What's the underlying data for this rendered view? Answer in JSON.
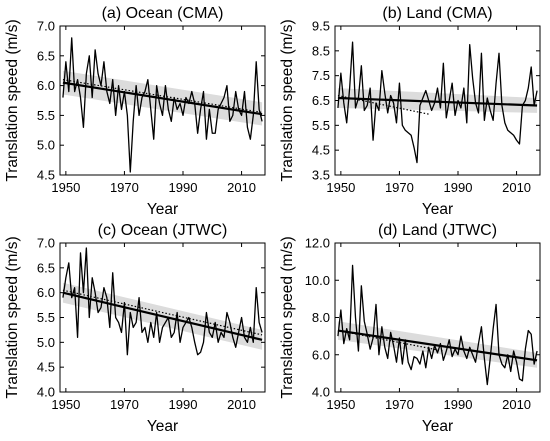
{
  "chart_data": [
    {
      "type": "line",
      "title": "(a) Ocean (CMA)",
      "xlabel": "Year",
      "ylabel": "Translation speed (m/s)",
      "xlim": [
        1948,
        2018
      ],
      "ylim": [
        4.5,
        7.0
      ],
      "xticks": [
        1950,
        1970,
        1990,
        2010
      ],
      "yticks": [
        4.5,
        5.0,
        5.5,
        6.0,
        6.5,
        7.0
      ],
      "ytick_labels": [
        "4.5",
        "5.0",
        "5.5",
        "6.0",
        "6.5",
        "7.0"
      ],
      "grid": false,
      "series": [
        {
          "style": "solid-thin",
          "x": [
            1949,
            1950,
            1951,
            1952,
            1953,
            1954,
            1955,
            1956,
            1957,
            1958,
            1959,
            1960,
            1961,
            1962,
            1963,
            1964,
            1965,
            1966,
            1967,
            1968,
            1969,
            1970,
            1971,
            1972,
            1973,
            1974,
            1975,
            1976,
            1977,
            1978,
            1979,
            1980,
            1981,
            1982,
            1983,
            1984,
            1985,
            1986,
            1987,
            1988,
            1989,
            1990,
            1991,
            1992,
            1993,
            1994,
            1995,
            1996,
            1997,
            1998,
            1999,
            2000,
            2001,
            2002,
            2003,
            2004,
            2005,
            2006,
            2007,
            2008,
            2009,
            2010,
            2011,
            2012,
            2013,
            2014,
            2015,
            2016,
            2017
          ],
          "y": [
            5.8,
            6.4,
            5.9,
            6.8,
            5.9,
            6.1,
            5.8,
            5.3,
            6.2,
            6.5,
            5.8,
            6.6,
            6.2,
            6.0,
            6.4,
            5.9,
            5.7,
            6.1,
            5.5,
            6.0,
            5.6,
            5.9,
            5.5,
            4.55,
            5.4,
            6.0,
            5.5,
            5.8,
            5.9,
            6.1,
            5.6,
            5.1,
            6.0,
            5.7,
            5.5,
            6.0,
            5.6,
            5.4,
            5.8,
            5.6,
            5.7,
            5.5,
            5.8,
            5.7,
            5.9,
            5.7,
            5.2,
            5.6,
            5.9,
            5.1,
            5.6,
            5.2,
            5.2,
            5.6,
            5.7,
            5.8,
            6.0,
            5.4,
            5.5,
            5.9,
            5.6,
            5.5,
            5.9,
            5.3,
            5.1,
            5.5,
            6.4,
            5.6,
            5.4
          ]
        },
        {
          "style": "dotted",
          "x": [
            1949,
            2017
          ],
          "y": [
            6.1,
            5.55
          ]
        },
        {
          "style": "solid-thick",
          "x": [
            1949,
            2017
          ],
          "y": [
            6.05,
            5.52
          ]
        }
      ],
      "confidence_band": {
        "x": [
          1949,
          2017
        ],
        "lower": [
          5.85,
          5.33
        ],
        "upper": [
          6.25,
          5.72
        ]
      }
    },
    {
      "type": "line",
      "title": "(b) Land (CMA)",
      "xlabel": "Year",
      "ylabel": "Translation speed (m/s)",
      "xlim": [
        1948,
        2018
      ],
      "ylim": [
        3.5,
        9.5
      ],
      "xticks": [
        1950,
        1970,
        1990,
        2010
      ],
      "yticks": [
        3.5,
        4.5,
        5.5,
        6.5,
        7.5,
        8.5,
        9.5
      ],
      "ytick_labels": [
        "3.5",
        "4.5",
        "5.5",
        "6.5",
        "7.5",
        "8.5",
        "9.5"
      ],
      "grid": false,
      "series": [
        {
          "style": "solid-thin",
          "x": [
            1949,
            1950,
            1951,
            1952,
            1953,
            1954,
            1955,
            1956,
            1957,
            1958,
            1959,
            1960,
            1961,
            1962,
            1963,
            1964,
            1965,
            1966,
            1967,
            1968,
            1969,
            1970,
            1971,
            1972,
            1973,
            1974,
            1975,
            1976,
            1977,
            1978,
            1979,
            1980,
            1981,
            1982,
            1983,
            1984,
            1985,
            1986,
            1987,
            1988,
            1989,
            1990,
            1991,
            1992,
            1993,
            1994,
            1995,
            1996,
            1997,
            1998,
            1999,
            2000,
            2001,
            2002,
            2003,
            2004,
            2005,
            2006,
            2007,
            2008,
            2009,
            2010,
            2011,
            2012,
            2013,
            2014,
            2015,
            2016,
            2017
          ],
          "y": [
            6.2,
            7.6,
            6.4,
            5.6,
            7.0,
            8.85,
            6.2,
            6.6,
            7.9,
            6.1,
            6.3,
            7.0,
            4.9,
            6.4,
            6.1,
            7.7,
            6.8,
            6.0,
            6.7,
            6.4,
            5.6,
            7.2,
            5.5,
            5.3,
            5.2,
            5.1,
            4.6,
            4.0,
            6.3,
            6.6,
            6.9,
            6.5,
            6.1,
            6.4,
            7.0,
            6.2,
            8.0,
            5.8,
            6.5,
            7.2,
            5.9,
            6.5,
            6.2,
            7.0,
            5.6,
            8.75,
            7.4,
            6.4,
            6.0,
            8.4,
            5.7,
            6.6,
            6.1,
            5.7,
            7.2,
            8.4,
            6.3,
            5.6,
            5.3,
            5.2,
            5.1,
            4.9,
            4.75,
            6.3,
            6.5,
            7.0,
            7.85,
            6.3,
            6.9
          ]
        },
        {
          "style": "dotted",
          "x": [
            1949,
            1980
          ],
          "y": [
            6.7,
            5.95
          ]
        },
        {
          "style": "solid-thick",
          "x": [
            1949,
            2017
          ],
          "y": [
            6.6,
            6.3
          ]
        }
      ],
      "confidence_band": {
        "x": [
          1949,
          2017
        ],
        "lower": [
          6.2,
          6.0
        ],
        "upper": [
          7.0,
          6.6
        ]
      }
    },
    {
      "type": "line",
      "title": "(c) Ocean (JTWC)",
      "xlabel": "Year",
      "ylabel": "Translation speed (m/s)",
      "xlim": [
        1948,
        2018
      ],
      "ylim": [
        4.0,
        7.0
      ],
      "xticks": [
        1950,
        1970,
        1990,
        2010
      ],
      "yticks": [
        4.0,
        4.5,
        5.0,
        5.5,
        6.0,
        6.5,
        7.0
      ],
      "ytick_labels": [
        "4.0",
        "4.5",
        "5.0",
        "5.5",
        "6.0",
        "6.5",
        "7.0"
      ],
      "grid": false,
      "series": [
        {
          "style": "solid-thin",
          "x": [
            1949,
            1950,
            1951,
            1952,
            1953,
            1954,
            1955,
            1956,
            1957,
            1958,
            1959,
            1960,
            1961,
            1962,
            1963,
            1964,
            1965,
            1966,
            1967,
            1968,
            1969,
            1970,
            1971,
            1972,
            1973,
            1974,
            1975,
            1976,
            1977,
            1978,
            1979,
            1980,
            1981,
            1982,
            1983,
            1984,
            1985,
            1986,
            1987,
            1988,
            1989,
            1990,
            1991,
            1992,
            1993,
            1994,
            1995,
            1996,
            1997,
            1998,
            1999,
            2000,
            2001,
            2002,
            2003,
            2004,
            2005,
            2006,
            2007,
            2008,
            2009,
            2010,
            2011,
            2012,
            2013,
            2014,
            2015,
            2016,
            2017
          ],
          "y": [
            5.9,
            6.3,
            6.6,
            5.9,
            6.1,
            5.1,
            6.8,
            6.0,
            6.9,
            5.5,
            6.3,
            6.0,
            5.6,
            5.7,
            6.1,
            5.9,
            5.3,
            6.4,
            5.5,
            5.4,
            5.2,
            5.8,
            4.75,
            5.6,
            5.3,
            5.4,
            5.9,
            5.2,
            5.3,
            5.0,
            5.4,
            5.1,
            5.6,
            5.0,
            5.3,
            5.4,
            5.5,
            5.1,
            5.2,
            5.6,
            5.0,
            5.3,
            5.4,
            5.5,
            5.3,
            5.0,
            4.75,
            4.8,
            5.0,
            5.6,
            5.2,
            5.1,
            5.4,
            5.0,
            5.2,
            5.1,
            5.6,
            5.4,
            5.1,
            4.9,
            5.2,
            5.5,
            5.1,
            5.0,
            5.3,
            5.0,
            6.1,
            5.4,
            5.2
          ]
        },
        {
          "style": "dotted",
          "x": [
            1949,
            2017
          ],
          "y": [
            6.05,
            5.15
          ]
        },
        {
          "style": "solid-thick",
          "x": [
            1949,
            2017
          ],
          "y": [
            6.0,
            5.05
          ]
        }
      ],
      "confidence_band": {
        "x": [
          1949,
          2017
        ],
        "lower": [
          5.8,
          4.85
        ],
        "upper": [
          6.2,
          5.25
        ]
      }
    },
    {
      "type": "line",
      "title": "(d) Land (JTWC)",
      "xlabel": "Year",
      "ylabel": "Translation speed (m/s)",
      "xlim": [
        1948,
        2018
      ],
      "ylim": [
        4.0,
        12.0
      ],
      "xticks": [
        1950,
        1970,
        1990,
        2010
      ],
      "yticks": [
        4.0,
        6.0,
        8.0,
        10.0,
        12.0
      ],
      "ytick_labels": [
        "4.0",
        "6.0",
        "8.0",
        "10.0",
        "12.0"
      ],
      "grid": false,
      "series": [
        {
          "style": "solid-thin",
          "x": [
            1949,
            1950,
            1951,
            1952,
            1953,
            1954,
            1955,
            1956,
            1957,
            1958,
            1959,
            1960,
            1961,
            1962,
            1963,
            1964,
            1965,
            1966,
            1967,
            1968,
            1969,
            1970,
            1971,
            1972,
            1973,
            1974,
            1975,
            1976,
            1977,
            1978,
            1979,
            1980,
            1981,
            1982,
            1983,
            1984,
            1985,
            1986,
            1987,
            1988,
            1989,
            1990,
            1991,
            1992,
            1993,
            1994,
            1995,
            1996,
            1997,
            1998,
            1999,
            2000,
            2001,
            2002,
            2003,
            2004,
            2005,
            2006,
            2007,
            2008,
            2009,
            2010,
            2011,
            2012,
            2013,
            2014,
            2015,
            2016,
            2017
          ],
          "y": [
            7.0,
            8.4,
            6.6,
            7.4,
            6.8,
            10.8,
            8.0,
            6.2,
            9.7,
            7.8,
            7.1,
            6.3,
            6.9,
            8.7,
            6.0,
            7.5,
            6.4,
            5.8,
            7.2,
            6.5,
            5.6,
            6.9,
            5.5,
            6.8,
            5.6,
            5.2,
            5.9,
            5.8,
            5.5,
            6.2,
            5.3,
            6.4,
            5.8,
            6.5,
            6.1,
            6.6,
            5.7,
            6.2,
            6.8,
            5.9,
            6.3,
            6.0,
            7.0,
            6.2,
            5.8,
            6.4,
            6.0,
            5.6,
            6.6,
            7.5,
            5.8,
            4.4,
            5.8,
            7.4,
            8.7,
            6.0,
            5.5,
            5.3,
            6.0,
            5.1,
            6.2,
            5.6,
            4.7,
            4.6,
            6.3,
            7.3,
            7.1,
            5.5,
            6.2
          ]
        },
        {
          "style": "dotted",
          "x": [
            1949,
            1985
          ],
          "y": [
            7.3,
            6.2
          ]
        },
        {
          "style": "solid-thick",
          "x": [
            1949,
            2017
          ],
          "y": [
            7.3,
            5.7
          ]
        }
      ],
      "confidence_band": {
        "x": [
          1949,
          2017
        ],
        "lower": [
          6.8,
          5.3
        ],
        "upper": [
          7.8,
          6.1
        ]
      }
    }
  ]
}
